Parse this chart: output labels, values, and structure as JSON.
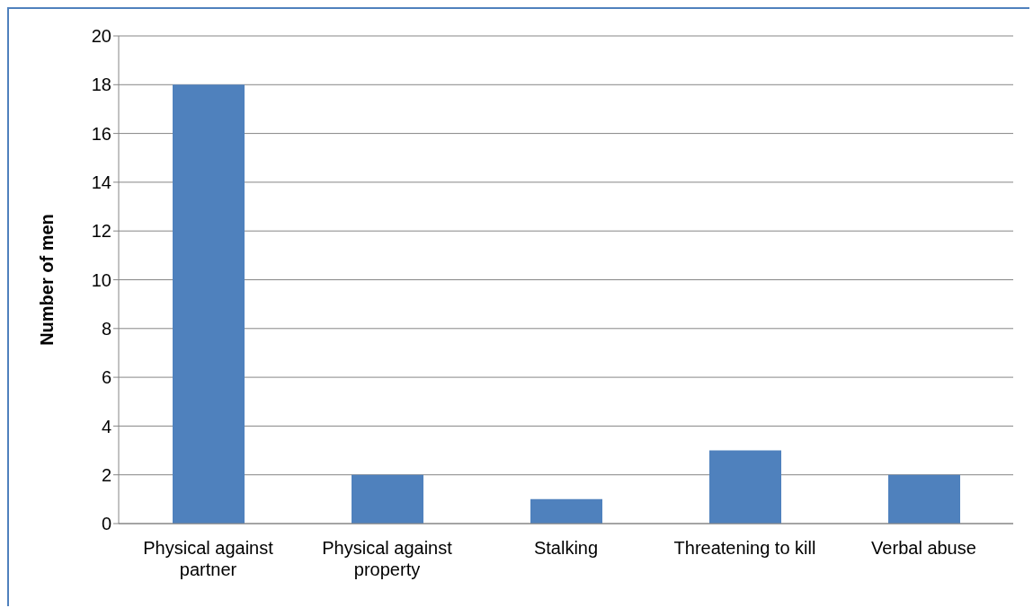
{
  "chart_data": {
    "type": "bar",
    "ylabel": "Number of men",
    "categories": [
      "Physical against partner",
      "Physical against property",
      "Stalking",
      "Threatening to kill",
      "Verbal abuse"
    ],
    "values": [
      18,
      2,
      1,
      3,
      2
    ],
    "color": "#4f81bd",
    "ylim": [
      0,
      20
    ],
    "yticks": [
      0,
      2,
      4,
      6,
      8,
      10,
      12,
      14,
      16,
      18,
      20
    ],
    "grid": "y"
  }
}
